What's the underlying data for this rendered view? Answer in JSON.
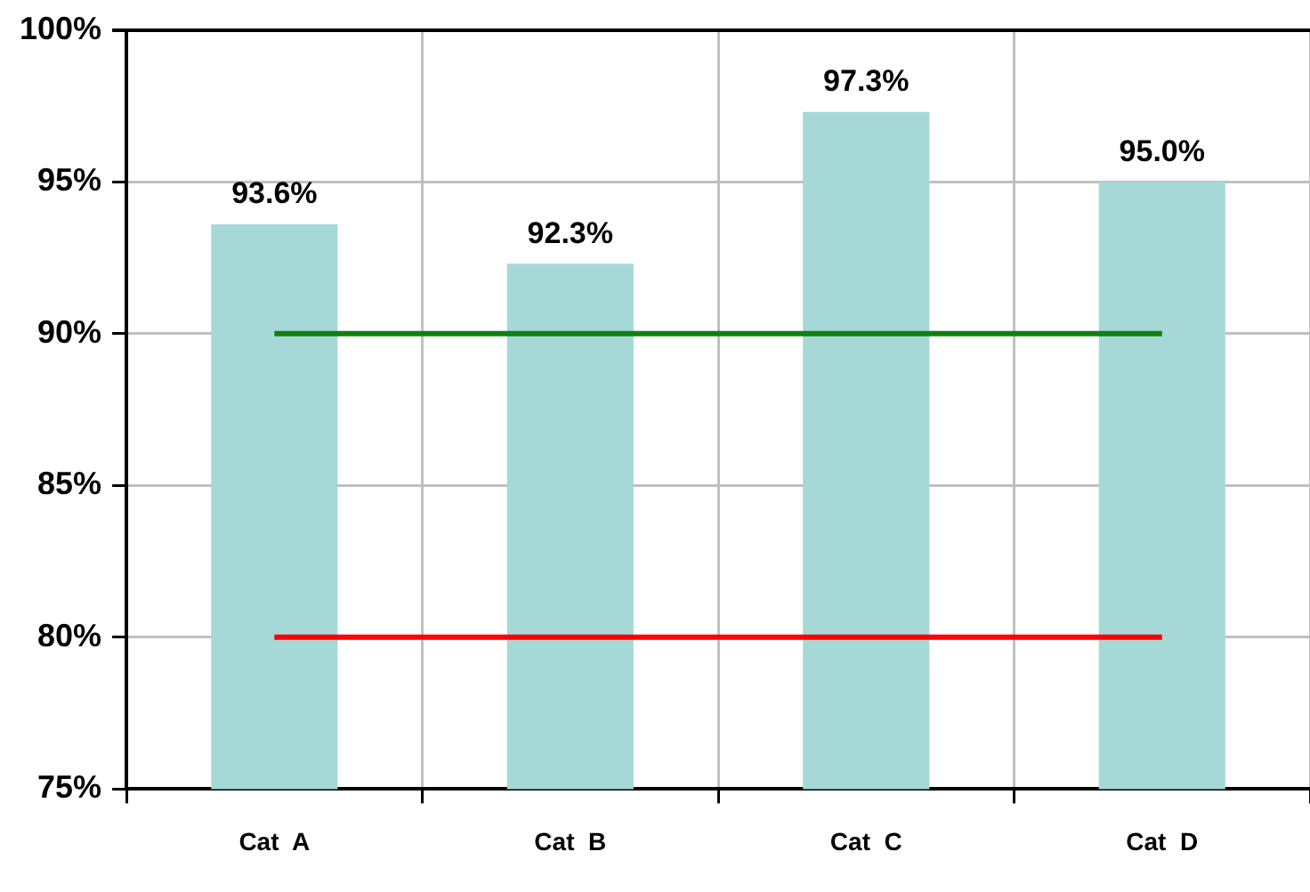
{
  "chart_data": {
    "type": "bar",
    "categories": [
      "Cat  A",
      "Cat  B",
      "Cat  C",
      "Cat  D"
    ],
    "values": [
      93.6,
      92.3,
      97.3,
      95.0
    ],
    "value_labels": [
      "93.6%",
      "92.3%",
      "97.3%",
      "95.0%"
    ],
    "color": "#a6d8d8",
    "ylim": [
      75,
      100
    ],
    "yticks": [
      {
        "value": 75,
        "label": "75%"
      },
      {
        "value": 80,
        "label": "80%"
      },
      {
        "value": 85,
        "label": "85%"
      },
      {
        "value": 90,
        "label": "90%"
      },
      {
        "value": 95,
        "label": "95%"
      },
      {
        "value": 100,
        "label": "100%"
      }
    ],
    "ref_lines": [
      {
        "axis": "y",
        "value": 90,
        "color": "#108010"
      },
      {
        "axis": "y",
        "value": 80,
        "color": "#ff0000"
      }
    ],
    "grid": true,
    "legend": false
  }
}
